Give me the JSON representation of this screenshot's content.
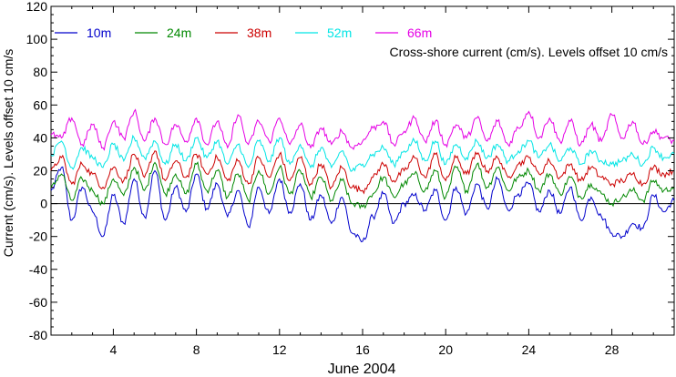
{
  "chart_data": {
    "type": "line",
    "title": "",
    "annotation": "Cross-shore current (cm/s). Levels offset 10 cm/s",
    "xlabel": "June 2004",
    "ylabel": "Current (cm/s). Levels offset 10 cm/s",
    "xlim": [
      1,
      31
    ],
    "ylim": [
      -80,
      120
    ],
    "xticks": [
      4,
      8,
      12,
      16,
      20,
      24,
      28
    ],
    "xtick_labels": [
      "4",
      "8",
      "12",
      "16",
      "20",
      "24",
      "28"
    ],
    "yticks": [
      -80,
      -60,
      -40,
      -20,
      0,
      20,
      40,
      60,
      80,
      100,
      120
    ],
    "ytick_labels": [
      "-80",
      "-60",
      "-40",
      "-20",
      "0",
      "20",
      "40",
      "60",
      "80",
      "100",
      "120"
    ],
    "zero_line": 0,
    "grid": false,
    "legend_position": "top",
    "series": [
      {
        "name": "10m",
        "color": "#0000cc",
        "x": [
          1,
          1.5,
          2,
          2.5,
          3,
          3.5,
          4,
          4.5,
          5,
          5.5,
          6,
          6.5,
          7,
          7.5,
          8,
          8.5,
          9,
          9.5,
          10,
          10.5,
          11,
          11.5,
          12,
          12.5,
          13,
          13.5,
          14,
          14.5,
          15,
          15.5,
          16,
          16.5,
          17,
          17.5,
          18,
          18.5,
          19,
          19.5,
          20,
          20.5,
          21,
          21.5,
          22,
          22.5,
          23,
          23.5,
          24,
          24.5,
          25,
          25.5,
          26,
          26.5,
          27,
          27.5,
          28,
          28.5,
          29,
          29.5,
          30,
          30.5,
          31
        ],
        "values": [
          8,
          22,
          -10,
          10,
          -5,
          -20,
          5,
          -12,
          15,
          -8,
          20,
          -10,
          10,
          -5,
          18,
          -3,
          12,
          -8,
          8,
          -14,
          10,
          -6,
          15,
          -5,
          12,
          -10,
          5,
          -12,
          4,
          -18,
          -23,
          -8,
          6,
          -12,
          0,
          5,
          -4,
          8,
          -10,
          10,
          -6,
          12,
          -3,
          15,
          -4,
          6,
          12,
          -5,
          8,
          -6,
          10,
          -10,
          4,
          -8,
          -18,
          -20,
          -12,
          -15,
          5,
          -5,
          2
        ]
      },
      {
        "name": "24m",
        "color": "#008800",
        "x": [
          1,
          1.5,
          2,
          2.5,
          3,
          3.5,
          4,
          4.5,
          5,
          5.5,
          6,
          6.5,
          7,
          7.5,
          8,
          8.5,
          9,
          9.5,
          10,
          10.5,
          11,
          11.5,
          12,
          12.5,
          13,
          13.5,
          14,
          14.5,
          15,
          15.5,
          16,
          16.5,
          17,
          17.5,
          18,
          18.5,
          19,
          19.5,
          20,
          20.5,
          21,
          21.5,
          22,
          22.5,
          23,
          23.5,
          24,
          24.5,
          25,
          25.5,
          26,
          26.5,
          27,
          27.5,
          28,
          28.5,
          29,
          29.5,
          30,
          30.5,
          31
        ],
        "values": [
          10,
          18,
          2,
          15,
          8,
          0,
          15,
          5,
          22,
          8,
          25,
          6,
          18,
          6,
          24,
          8,
          20,
          4,
          18,
          2,
          20,
          6,
          22,
          6,
          20,
          4,
          16,
          2,
          14,
          0,
          -2,
          6,
          16,
          4,
          12,
          18,
          8,
          20,
          4,
          22,
          8,
          24,
          10,
          22,
          8,
          16,
          20,
          8,
          18,
          6,
          16,
          4,
          12,
          6,
          0,
          4,
          8,
          2,
          14,
          8,
          10
        ]
      },
      {
        "name": "38m",
        "color": "#cc0000",
        "x": [
          1,
          1.5,
          2,
          2.5,
          3,
          3.5,
          4,
          4.5,
          5,
          5.5,
          6,
          6.5,
          7,
          7.5,
          8,
          8.5,
          9,
          9.5,
          10,
          10.5,
          11,
          11.5,
          12,
          12.5,
          13,
          13.5,
          14,
          14.5,
          15,
          15.5,
          16,
          16.5,
          17,
          17.5,
          18,
          18.5,
          19,
          19.5,
          20,
          20.5,
          21,
          21.5,
          22,
          22.5,
          23,
          23.5,
          24,
          24.5,
          25,
          25.5,
          26,
          26.5,
          27,
          27.5,
          28,
          28.5,
          29,
          29.5,
          30,
          30.5,
          31
        ],
        "values": [
          20,
          28,
          12,
          24,
          18,
          10,
          22,
          14,
          30,
          16,
          32,
          14,
          26,
          16,
          30,
          18,
          28,
          14,
          26,
          12,
          28,
          16,
          30,
          14,
          28,
          12,
          24,
          10,
          22,
          10,
          8,
          16,
          24,
          14,
          20,
          28,
          16,
          30,
          14,
          28,
          18,
          30,
          20,
          28,
          16,
          24,
          28,
          18,
          26,
          16,
          24,
          14,
          22,
          16,
          12,
          14,
          18,
          12,
          22,
          18,
          20
        ]
      },
      {
        "name": "52m",
        "color": "#00e5e5",
        "x": [
          1,
          1.5,
          2,
          2.5,
          3,
          3.5,
          4,
          4.5,
          5,
          5.5,
          6,
          6.5,
          7,
          7.5,
          8,
          8.5,
          9,
          9.5,
          10,
          10.5,
          11,
          11.5,
          12,
          12.5,
          13,
          13.5,
          14,
          14.5,
          15,
          15.5,
          16,
          16.5,
          17,
          17.5,
          18,
          18.5,
          19,
          19.5,
          20,
          20.5,
          21,
          21.5,
          22,
          22.5,
          23,
          23.5,
          24,
          24.5,
          25,
          25.5,
          26,
          26.5,
          27,
          27.5,
          28,
          28.5,
          29,
          29.5,
          30,
          30.5,
          31
        ],
        "values": [
          30,
          38,
          22,
          34,
          28,
          22,
          36,
          26,
          40,
          28,
          38,
          24,
          36,
          26,
          40,
          28,
          38,
          24,
          36,
          22,
          38,
          26,
          40,
          24,
          36,
          22,
          34,
          22,
          32,
          20,
          24,
          30,
          34,
          24,
          32,
          38,
          26,
          38,
          24,
          36,
          28,
          38,
          28,
          36,
          26,
          32,
          38,
          28,
          36,
          26,
          34,
          24,
          32,
          26,
          24,
          26,
          30,
          24,
          34,
          28,
          30
        ]
      },
      {
        "name": "66m",
        "color": "#e500e5",
        "x": [
          1,
          1.5,
          2,
          2.5,
          3,
          3.5,
          4,
          4.5,
          5,
          5.5,
          6,
          6.5,
          7,
          7.5,
          8,
          8.5,
          9,
          9.5,
          10,
          10.5,
          11,
          11.5,
          12,
          12.5,
          13,
          13.5,
          14,
          14.5,
          15,
          15.5,
          16,
          16.5,
          17,
          17.5,
          18,
          18.5,
          19,
          19.5,
          20,
          20.5,
          21,
          21.5,
          22,
          22.5,
          23,
          23.5,
          24,
          24.5,
          25,
          25.5,
          26,
          26.5,
          27,
          27.5,
          28,
          28.5,
          29,
          29.5,
          30,
          30.5,
          31
        ],
        "values": [
          42,
          40,
          52,
          36,
          48,
          34,
          50,
          40,
          56,
          38,
          52,
          36,
          48,
          38,
          52,
          36,
          50,
          34,
          54,
          36,
          50,
          38,
          52,
          36,
          48,
          34,
          46,
          36,
          44,
          34,
          38,
          46,
          50,
          36,
          44,
          52,
          38,
          50,
          36,
          48,
          40,
          52,
          38,
          50,
          36,
          46,
          56,
          40,
          52,
          38,
          50,
          36,
          48,
          38,
          54,
          40,
          50,
          36,
          44,
          40,
          38
        ]
      }
    ]
  }
}
